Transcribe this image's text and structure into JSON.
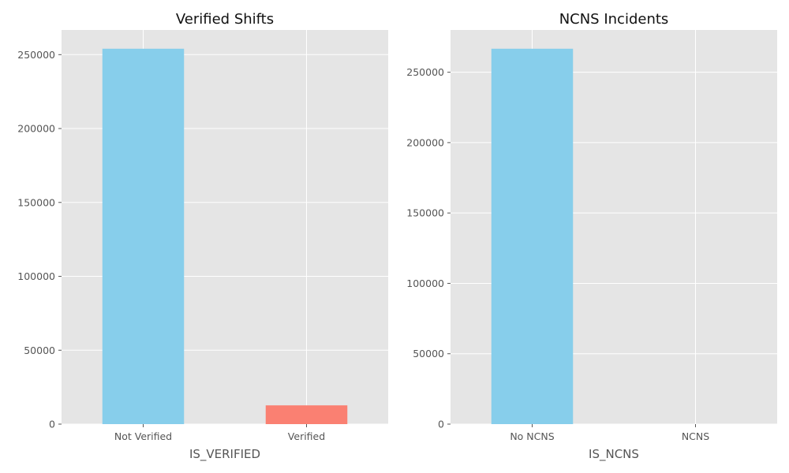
{
  "chart_data": [
    {
      "type": "bar",
      "title": "Verified Shifts",
      "xlabel": "IS_VERIFIED",
      "ylabel": "",
      "categories": [
        "Not Verified",
        "Verified"
      ],
      "values": [
        254000,
        12700
      ],
      "colors": [
        "#87ceeb",
        "#fa8072"
      ],
      "ylim": [
        0,
        266700
      ],
      "yticks": [
        0,
        50000,
        100000,
        150000,
        200000,
        250000
      ],
      "grid": true
    },
    {
      "type": "bar",
      "title": "NCNS Incidents",
      "xlabel": "IS_NCNS",
      "ylabel": "",
      "categories": [
        "No NCNS",
        "NCNS"
      ],
      "values": [
        266700,
        0
      ],
      "colors": [
        "#87ceeb",
        "#fa8072"
      ],
      "ylim": [
        0,
        280035
      ],
      "yticks": [
        0,
        50000,
        100000,
        150000,
        200000,
        250000
      ],
      "grid": true
    }
  ]
}
